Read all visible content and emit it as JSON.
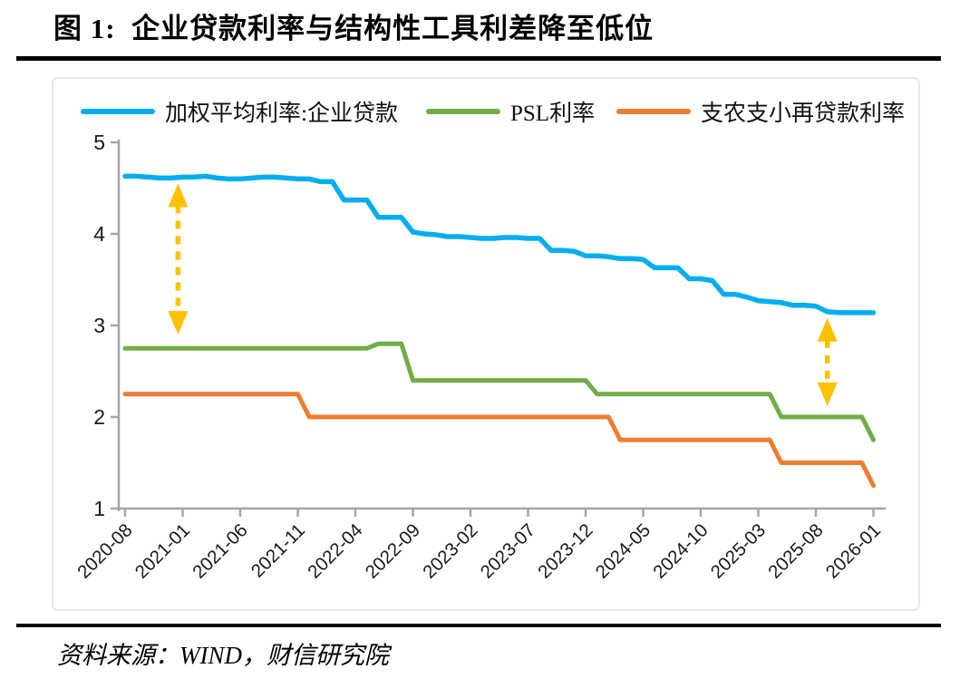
{
  "page": {
    "title": "图 1:  企业贷款利率与结构性工具利差降至低位",
    "source": "资料来源：WIND，财信研究院"
  },
  "chart_data": {
    "type": "line",
    "title": "企业贷款利率与结构性工具利差降至低位",
    "x_start": "2020-08",
    "x_end": "2026-01",
    "x_frequency": "monthly",
    "n_points": 66,
    "x_tick_labels": [
      "2020-08",
      "2021-01",
      "2021-06",
      "2021-11",
      "2022-04",
      "2022-09",
      "2023-02",
      "2023-07",
      "2023-12",
      "2024-05",
      "2024-10",
      "2025-03",
      "2025-08",
      "2026-01"
    ],
    "x_tick_every_n_points": 5,
    "ylim": [
      1,
      5
    ],
    "y_ticks": [
      1,
      2,
      3,
      4,
      5
    ],
    "grid": false,
    "legend_position": "top",
    "axis_color": "#a6a6a6",
    "tick_label_color": "#1a1a1a",
    "series": [
      {
        "name": "加权平均利率:企业贷款",
        "color": "#00AEEF",
        "values": [
          4.63,
          4.63,
          4.62,
          4.61,
          4.61,
          4.62,
          4.62,
          4.63,
          4.61,
          4.6,
          4.6,
          4.61,
          4.62,
          4.62,
          4.61,
          4.6,
          4.6,
          4.57,
          4.57,
          4.37,
          4.37,
          4.37,
          4.18,
          4.18,
          4.18,
          4.02,
          4.0,
          3.99,
          3.97,
          3.97,
          3.96,
          3.95,
          3.95,
          3.96,
          3.96,
          3.95,
          3.95,
          3.82,
          3.82,
          3.81,
          3.76,
          3.76,
          3.75,
          3.73,
          3.73,
          3.72,
          3.63,
          3.63,
          3.63,
          3.51,
          3.51,
          3.49,
          3.34,
          3.34,
          3.31,
          3.27,
          3.26,
          3.25,
          3.22,
          3.22,
          3.21,
          3.15,
          3.14,
          3.14,
          3.14,
          3.14
        ]
      },
      {
        "name": "PSL利率",
        "color": "#70AD47",
        "values": [
          2.75,
          2.75,
          2.75,
          2.75,
          2.75,
          2.75,
          2.75,
          2.75,
          2.75,
          2.75,
          2.75,
          2.75,
          2.75,
          2.75,
          2.75,
          2.75,
          2.75,
          2.75,
          2.75,
          2.75,
          2.75,
          2.75,
          2.8,
          2.8,
          2.8,
          2.4,
          2.4,
          2.4,
          2.4,
          2.4,
          2.4,
          2.4,
          2.4,
          2.4,
          2.4,
          2.4,
          2.4,
          2.4,
          2.4,
          2.4,
          2.4,
          2.25,
          2.25,
          2.25,
          2.25,
          2.25,
          2.25,
          2.25,
          2.25,
          2.25,
          2.25,
          2.25,
          2.25,
          2.25,
          2.25,
          2.25,
          2.25,
          2.0,
          2.0,
          2.0,
          2.0,
          2.0,
          2.0,
          2.0,
          2.0,
          1.75
        ]
      },
      {
        "name": "支农支小再贷款利率",
        "color": "#ED7D31",
        "values": [
          2.25,
          2.25,
          2.25,
          2.25,
          2.25,
          2.25,
          2.25,
          2.25,
          2.25,
          2.25,
          2.25,
          2.25,
          2.25,
          2.25,
          2.25,
          2.25,
          2.0,
          2.0,
          2.0,
          2.0,
          2.0,
          2.0,
          2.0,
          2.0,
          2.0,
          2.0,
          2.0,
          2.0,
          2.0,
          2.0,
          2.0,
          2.0,
          2.0,
          2.0,
          2.0,
          2.0,
          2.0,
          2.0,
          2.0,
          2.0,
          2.0,
          2.0,
          2.0,
          1.75,
          1.75,
          1.75,
          1.75,
          1.75,
          1.75,
          1.75,
          1.75,
          1.75,
          1.75,
          1.75,
          1.75,
          1.75,
          1.75,
          1.5,
          1.5,
          1.5,
          1.5,
          1.5,
          1.5,
          1.5,
          1.5,
          1.25
        ]
      }
    ],
    "annotations": [
      {
        "type": "double_arrow",
        "color": "#FFC000",
        "month": "2021-01",
        "month_index": 4.6,
        "value_top": 4.55,
        "value_bottom": 2.9
      },
      {
        "type": "double_arrow",
        "color": "#FFC000",
        "month": "2025-09",
        "month_index": 61.0,
        "value_top": 3.08,
        "value_bottom": 2.12
      }
    ]
  }
}
